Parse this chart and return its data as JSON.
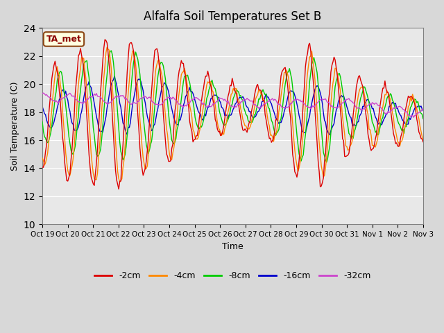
{
  "title": "Alfalfa Soil Temperatures Set B",
  "xlabel": "Time",
  "ylabel": "Soil Temperature (C)",
  "ylim": [
    10,
    24
  ],
  "yticks": [
    10,
    12,
    14,
    16,
    18,
    20,
    22,
    24
  ],
  "plot_bg_color": "#e8e8e8",
  "fig_bg_color": "#d8d8d8",
  "line_colors": {
    "-2cm": "#dd0000",
    "-4cm": "#ff8800",
    "-8cm": "#00cc00",
    "-16cm": "#0000cc",
    "-32cm": "#cc44cc"
  },
  "legend_label": "TA_met",
  "x_tick_labels": [
    "Oct 19",
    "Oct 20",
    "Oct 21",
    "Oct 22",
    "Oct 23",
    "Oct 24",
    "Oct 25",
    "Oct 26",
    "Oct 27",
    "Oct 28",
    "Oct 29",
    "Oct 30",
    "Oct 31",
    "Nov 1",
    "Nov 2",
    "Nov 3"
  ]
}
